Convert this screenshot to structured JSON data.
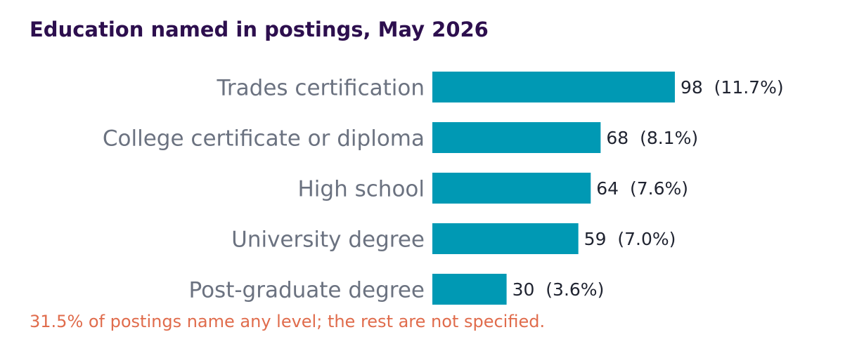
{
  "chart_data": {
    "type": "bar",
    "orientation": "horizontal",
    "title": "Education named in postings, May 2026",
    "categories": [
      "Trades certification",
      "College certificate or diploma",
      "High school",
      "University degree",
      "Post-graduate degree"
    ],
    "values": [
      98,
      68,
      64,
      59,
      30
    ],
    "value_labels": [
      "98  (11.7%)",
      "68  (8.1%)",
      "64  (7.6%)",
      "59  (7.0%)",
      "30  (3.6%)"
    ],
    "color": "#0099b4",
    "xlim": [
      0,
      100
    ],
    "note": "31.5% of postings name any level; the rest are not specified."
  }
}
